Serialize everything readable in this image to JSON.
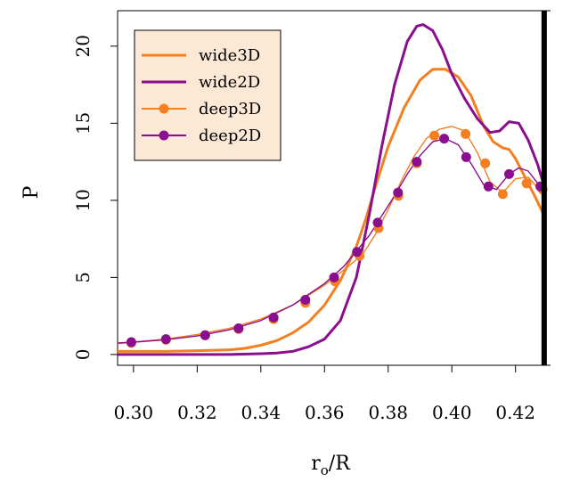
{
  "chart_data": {
    "type": "line",
    "xlabel": "r",
    "xlabel_sub": "o",
    "xlabel_suffix": "/R",
    "ylabel": "P",
    "xlim": [
      0.295,
      0.431
    ],
    "ylim": [
      -0.7,
      22.3
    ],
    "xticks": [
      0.3,
      0.32,
      0.34,
      0.36,
      0.38,
      0.4,
      0.42
    ],
    "xtick_labels": [
      "0.30",
      "0.32",
      "0.34",
      "0.36",
      "0.38",
      "0.40",
      "0.42"
    ],
    "yticks": [
      0,
      5,
      10,
      15,
      20
    ],
    "ytick_labels": [
      "0",
      "5",
      "10",
      "15",
      "20"
    ],
    "vline": 0.429,
    "legend_position": "top-left",
    "legend_bg": "#fbe8d5",
    "series": [
      {
        "name": "wide3D",
        "color": "#f47f20",
        "style": "thick",
        "x": [
          0.295,
          0.3,
          0.31,
          0.32,
          0.33,
          0.335,
          0.34,
          0.345,
          0.35,
          0.355,
          0.36,
          0.365,
          0.37,
          0.373,
          0.376,
          0.38,
          0.385,
          0.39,
          0.394,
          0.398,
          0.402,
          0.406,
          0.41,
          0.413,
          0.416,
          0.418,
          0.42,
          0.423,
          0.426,
          0.429
        ],
        "y": [
          0.2,
          0.2,
          0.2,
          0.25,
          0.3,
          0.4,
          0.6,
          0.9,
          1.4,
          2.1,
          3.2,
          4.8,
          7.0,
          8.8,
          10.9,
          13.5,
          16.0,
          17.8,
          18.5,
          18.5,
          18.0,
          16.8,
          14.8,
          13.8,
          13.4,
          13.3,
          12.7,
          11.5,
          10.3,
          9.0
        ]
      },
      {
        "name": "wide2D",
        "color": "#8a0f8e",
        "style": "thick",
        "x": [
          0.295,
          0.3,
          0.31,
          0.32,
          0.33,
          0.34,
          0.345,
          0.35,
          0.355,
          0.36,
          0.365,
          0.37,
          0.374,
          0.378,
          0.382,
          0.386,
          0.389,
          0.391,
          0.394,
          0.397,
          0.4,
          0.404,
          0.408,
          0.412,
          0.415,
          0.418,
          0.421,
          0.424,
          0.427,
          0.429
        ],
        "y": [
          0.0,
          0.0,
          0.0,
          0.0,
          0.0,
          0.05,
          0.1,
          0.2,
          0.5,
          1.0,
          2.2,
          5.0,
          9.0,
          13.5,
          17.5,
          20.3,
          21.3,
          21.4,
          21.0,
          19.8,
          18.2,
          16.6,
          15.3,
          14.4,
          14.5,
          15.1,
          15.0,
          13.9,
          12.3,
          10.9
        ]
      },
      {
        "name": "deep3D",
        "color": "#f47f20",
        "style": "thin-markers",
        "x": [
          0.295,
          0.3,
          0.31,
          0.32,
          0.33,
          0.34,
          0.35,
          0.36,
          0.368,
          0.372,
          0.376,
          0.38,
          0.384,
          0.388,
          0.392,
          0.396,
          0.4,
          0.404,
          0.408,
          0.412,
          0.416,
          0.42,
          0.424,
          0.427,
          0.429
        ],
        "y": [
          0.7,
          0.8,
          1.0,
          1.3,
          1.7,
          2.3,
          3.2,
          4.5,
          5.8,
          6.5,
          7.8,
          9.4,
          11.2,
          12.8,
          14.0,
          14.6,
          14.8,
          14.5,
          13.1,
          11.2,
          10.5,
          11.4,
          11.5,
          10.8,
          10.4
        ]
      },
      {
        "name": "deep2D",
        "color": "#8a0f8e",
        "style": "thin-markers",
        "x": [
          0.295,
          0.3,
          0.31,
          0.32,
          0.33,
          0.34,
          0.35,
          0.36,
          0.366,
          0.37,
          0.374,
          0.378,
          0.382,
          0.386,
          0.39,
          0.394,
          0.398,
          0.402,
          0.406,
          0.41,
          0.414,
          0.418,
          0.421,
          0.424,
          0.427,
          0.429
        ],
        "y": [
          0.75,
          0.8,
          0.95,
          1.2,
          1.6,
          2.2,
          3.2,
          4.6,
          5.7,
          6.7,
          7.7,
          9.0,
          10.3,
          11.7,
          12.9,
          13.8,
          14.0,
          13.6,
          12.4,
          11.0,
          10.7,
          11.7,
          12.1,
          11.9,
          11.1,
          10.5
        ]
      }
    ],
    "markers": {
      "deep3D": {
        "x": [
          0.2993,
          0.3102,
          0.3225,
          0.333,
          0.344,
          0.354,
          0.3633,
          0.371,
          0.377,
          0.3832,
          0.389,
          0.3945,
          0.4043,
          0.4105,
          0.416,
          0.4235,
          0.4285
        ],
        "y": [
          0.75,
          0.95,
          1.25,
          1.65,
          2.3,
          3.35,
          4.75,
          6.4,
          8.2,
          10.3,
          12.4,
          14.2,
          14.3,
          12.4,
          10.4,
          11.1,
          10.7
        ]
      },
      "deep2D": {
        "x": [
          0.2993,
          0.3102,
          0.3225,
          0.333,
          0.344,
          0.354,
          0.363,
          0.3702,
          0.3767,
          0.3831,
          0.389,
          0.3976,
          0.4045,
          0.4115,
          0.418,
          0.4278
        ],
        "y": [
          0.8,
          1.0,
          1.25,
          1.7,
          2.4,
          3.55,
          5.0,
          6.65,
          8.55,
          10.5,
          12.5,
          14.0,
          12.8,
          10.9,
          11.7,
          10.9
        ]
      }
    }
  }
}
